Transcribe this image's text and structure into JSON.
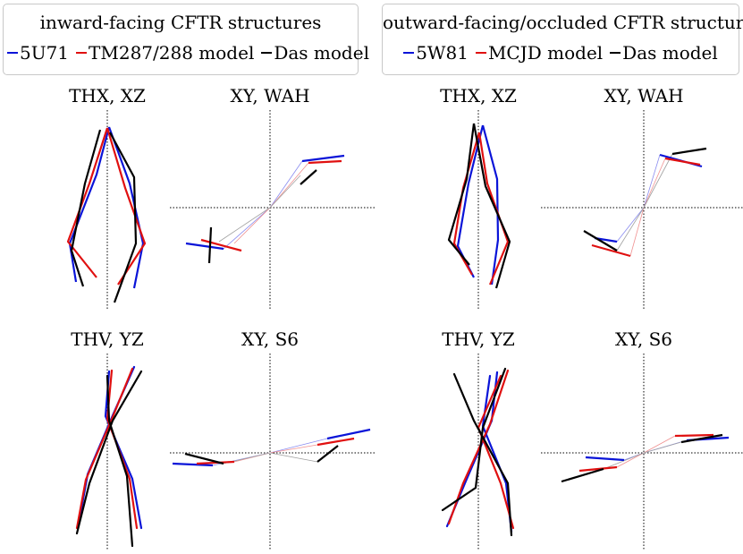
{
  "colors": {
    "5U71": "#0a14d8",
    "TM287/288": "#e01010",
    "Das": "#000000",
    "5W81": "#0a14d8",
    "MCJD": "#e01010"
  },
  "legends": [
    {
      "title": "inward-facing CFTR structures",
      "entries": [
        {
          "label": "5U71",
          "color_key": "5U71"
        },
        {
          "label": "TM287/288 model",
          "color_key": "TM287/288"
        },
        {
          "label": "Das model",
          "color_key": "Das"
        }
      ]
    },
    {
      "title": "outward-facing/occluded CFTR structures",
      "entries": [
        {
          "label": "5W81",
          "color_key": "5W81"
        },
        {
          "label": "MCJD model",
          "color_key": "MCJD"
        },
        {
          "label": "Das model",
          "color_key": "Das"
        }
      ]
    }
  ],
  "panels": [
    {
      "id": "inward-thx-xz",
      "title": "THX, XZ",
      "axes": "v"
    },
    {
      "id": "inward-xy-wah",
      "title": "XY, WAH",
      "axes": "cross"
    },
    {
      "id": "outward-thx-xz",
      "title": "THX, XZ",
      "axes": "v"
    },
    {
      "id": "outward-xy-wah",
      "title": "XY, WAH",
      "axes": "cross"
    },
    {
      "id": "inward-thv-yz",
      "title": "THV, YZ",
      "axes": "v"
    },
    {
      "id": "inward-xy-s6",
      "title": "XY, S6",
      "axes": "cross"
    },
    {
      "id": "outward-thv-yz",
      "title": "THV, YZ",
      "axes": "v"
    },
    {
      "id": "outward-xy-s6",
      "title": "XY, S6",
      "axes": "cross"
    }
  ]
}
